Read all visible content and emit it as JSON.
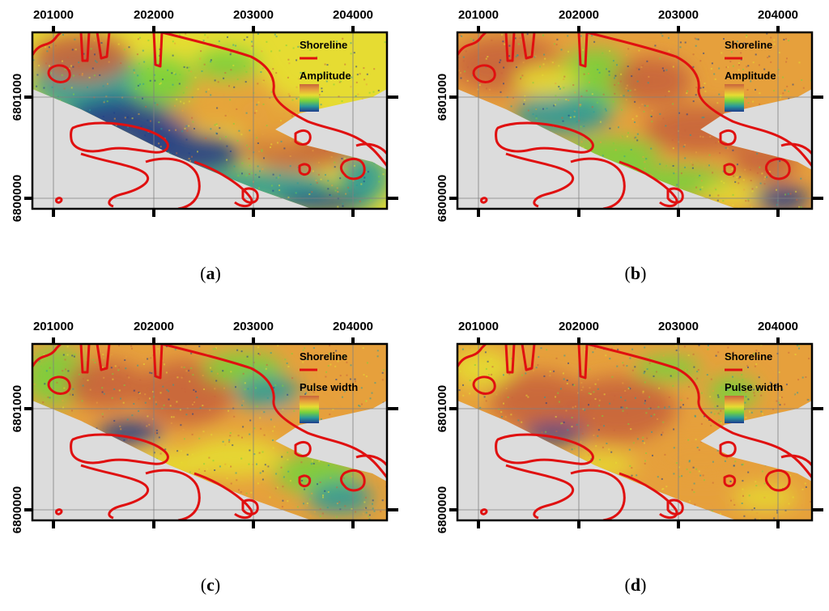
{
  "figure": {
    "x_ticks": [
      "201000",
      "202000",
      "203000",
      "204000"
    ],
    "y_ticks": [
      "6801000",
      "6800000"
    ],
    "colors": {
      "shoreline": "#e01010",
      "background": "#dcdcdc",
      "grid": "#808080",
      "ramp": [
        "#c8643c",
        "#e6a03c",
        "#e6dc32",
        "#78d23c",
        "#2a9a9a",
        "#1e3c8c"
      ]
    },
    "panels": [
      {
        "id": "a",
        "caption_letter": "a",
        "legend": {
          "shoreline_label": "Shoreline",
          "layer_label": "Amplitude"
        },
        "palette": "amp_blue_left"
      },
      {
        "id": "b",
        "caption_letter": "b",
        "legend": {
          "shoreline_label": "Shoreline",
          "layer_label": "Amplitude"
        },
        "palette": "amp_orange"
      },
      {
        "id": "c",
        "caption_letter": "c",
        "legend": {
          "shoreline_label": "Shoreline",
          "layer_label": "Pulse width"
        },
        "palette": "pw_mixed"
      },
      {
        "id": "d",
        "caption_letter": "d",
        "legend": {
          "shoreline_label": "Shoreline",
          "layer_label": "Pulse width"
        },
        "palette": "pw_orange"
      }
    ]
  }
}
